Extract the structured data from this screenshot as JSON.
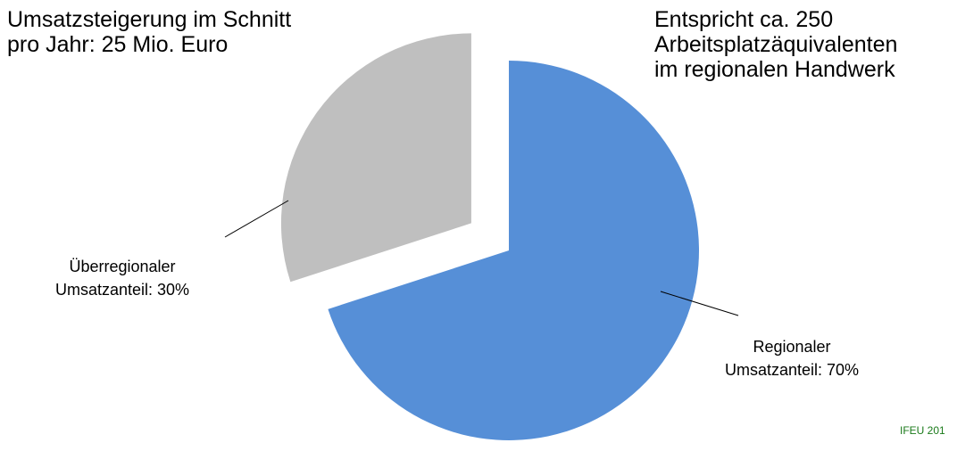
{
  "notes": {
    "left": {
      "line1": "Umsatzsteigerung im Schnitt",
      "line2": "pro Jahr: 25 Mio. Euro"
    },
    "right": {
      "line1": "Entspricht  ca. 250",
      "line2": "Arbeitsplatzäquivalenten",
      "line3": "im regionalen Handwerk"
    }
  },
  "credit": "IFEU 201",
  "chart_data": {
    "type": "pie",
    "slices": [
      {
        "key": "regional",
        "value": 70,
        "label_lines": [
          "Regionaler",
          "Umsatzanteil: 70%"
        ],
        "color": "#568fd7",
        "exploded": false
      },
      {
        "key": "ueberregional",
        "value": 30,
        "label_lines": [
          "Überregionaler",
          "Umsatzanteil: 30%"
        ],
        "color": "#bfbfbf",
        "exploded": true
      }
    ],
    "start_angle_deg": 0,
    "direction": "clockwise",
    "label_style": "callout-lines",
    "legend": "none"
  }
}
